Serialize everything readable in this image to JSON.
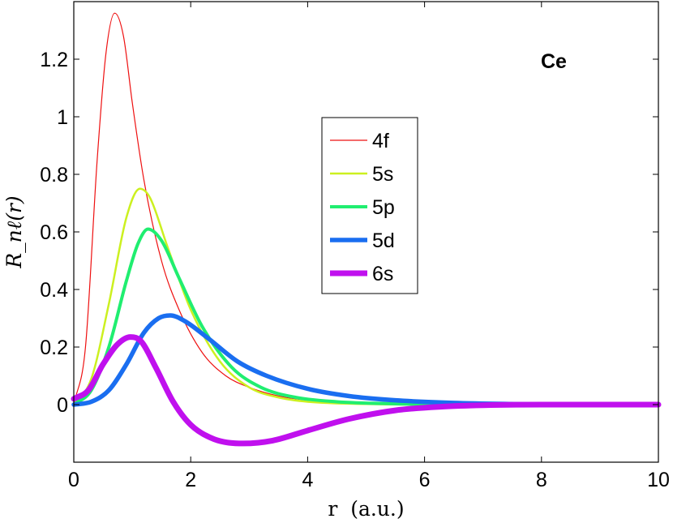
{
  "chart_data": {
    "type": "line",
    "annotation": "Ce",
    "xlabel": "r  (a.u.)",
    "ylabel": "R_nℓ(r)",
    "xlim": [
      0,
      10
    ],
    "ylim": [
      -0.2,
      1.4
    ],
    "xticks": [
      0,
      2,
      4,
      6,
      8,
      10
    ],
    "xtick_labels": [
      "0",
      "2",
      "4",
      "6",
      "8",
      "10"
    ],
    "yticks": [
      0,
      0.2,
      0.4,
      0.6,
      0.8,
      1,
      1.2
    ],
    "ytick_labels": [
      "0",
      "0.2",
      "0.4",
      "0.6",
      "0.8",
      "1",
      "1.2"
    ],
    "grid": false,
    "legend_position": "center",
    "series": [
      {
        "name": "4f",
        "color": "#ee1010",
        "width": 1.2,
        "x": [
          0,
          0.2,
          0.4,
          0.55,
          0.7,
          0.85,
          1.0,
          1.2,
          1.5,
          1.8,
          2.2,
          2.6,
          3.0,
          3.5,
          4.0,
          5.0,
          6.0,
          7.0,
          8.0,
          10.0
        ],
        "y": [
          0,
          0.2,
          0.85,
          1.22,
          1.36,
          1.28,
          1.05,
          0.78,
          0.5,
          0.33,
          0.18,
          0.1,
          0.06,
          0.03,
          0.015,
          0.004,
          0.001,
          0,
          0,
          0
        ]
      },
      {
        "name": "5s",
        "color": "#ccf020",
        "width": 2.5,
        "x": [
          0,
          0.3,
          0.6,
          0.9,
          1.13,
          1.3,
          1.6,
          2.0,
          2.5,
          3.0,
          3.5,
          4.0,
          5.0,
          6.0,
          7.0,
          8.0,
          10.0
        ],
        "y": [
          0,
          0.09,
          0.35,
          0.65,
          0.75,
          0.72,
          0.55,
          0.33,
          0.15,
          0.06,
          0.025,
          0.01,
          0.002,
          0,
          0,
          0,
          0
        ]
      },
      {
        "name": "5p",
        "color": "#20ee70",
        "width": 4,
        "x": [
          0,
          0.3,
          0.6,
          0.9,
          1.1,
          1.27,
          1.5,
          1.8,
          2.2,
          2.7,
          3.2,
          3.8,
          4.5,
          5.5,
          6.5,
          8.0,
          10.0
        ],
        "y": [
          0,
          0.05,
          0.2,
          0.43,
          0.56,
          0.61,
          0.57,
          0.44,
          0.27,
          0.13,
          0.06,
          0.025,
          0.01,
          0.003,
          0,
          0,
          0
        ]
      },
      {
        "name": "5d",
        "color": "#1a6ef0",
        "width": 5.5,
        "x": [
          0,
          0.3,
          0.6,
          0.9,
          1.2,
          1.45,
          1.65,
          1.9,
          2.3,
          2.8,
          3.3,
          4.0,
          4.7,
          5.5,
          6.5,
          7.5,
          8.5,
          10.0
        ],
        "y": [
          0,
          0.01,
          0.05,
          0.14,
          0.25,
          0.3,
          0.31,
          0.29,
          0.23,
          0.15,
          0.1,
          0.055,
          0.03,
          0.015,
          0.006,
          0.002,
          0,
          0
        ]
      },
      {
        "name": "6s",
        "color": "#c010ee",
        "width": 7,
        "x": [
          0,
          0.25,
          0.5,
          0.75,
          0.97,
          1.15,
          1.4,
          1.7,
          2.0,
          2.4,
          2.9,
          3.4,
          4.0,
          4.7,
          5.5,
          6.3,
          7.0,
          8.0,
          10.0
        ],
        "y": [
          0.02,
          0.05,
          0.14,
          0.21,
          0.235,
          0.22,
          0.13,
          0.01,
          -0.07,
          -0.12,
          -0.135,
          -0.125,
          -0.09,
          -0.05,
          -0.02,
          -0.007,
          -0.002,
          0,
          0
        ]
      }
    ]
  }
}
